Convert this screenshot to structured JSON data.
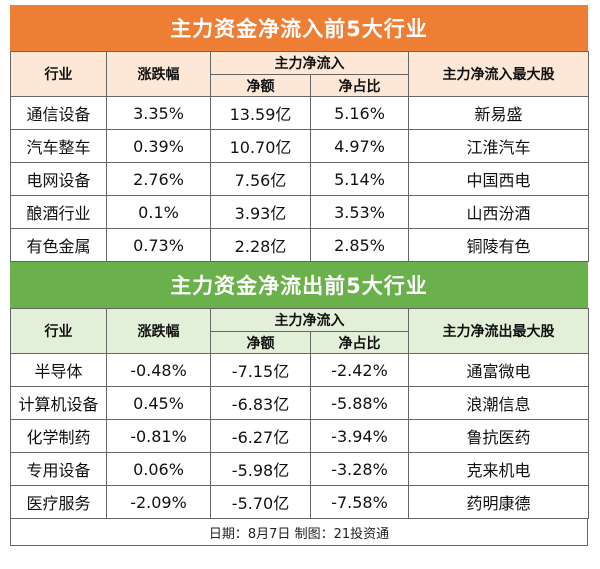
{
  "inflow": {
    "title": "主力资金净流入前5大行业",
    "headers": {
      "industry": "行业",
      "change": "涨跌幅",
      "net_flow": "主力净流入",
      "net_amount": "净额",
      "net_ratio": "净占比",
      "top_stock": "主力净流入最大股"
    },
    "rows": [
      {
        "industry": "通信设备",
        "change": "3.35%",
        "amount": "13.59亿",
        "ratio": "5.16%",
        "stock": "新易盛"
      },
      {
        "industry": "汽车整车",
        "change": "0.39%",
        "amount": "10.70亿",
        "ratio": "4.97%",
        "stock": "江淮汽车"
      },
      {
        "industry": "电网设备",
        "change": "2.76%",
        "amount": "7.56亿",
        "ratio": "5.14%",
        "stock": "中国西电"
      },
      {
        "industry": "酿酒行业",
        "change": "0.1%",
        "amount": "3.93亿",
        "ratio": "3.53%",
        "stock": "山西汾酒"
      },
      {
        "industry": "有色金属",
        "change": "0.73%",
        "amount": "2.28亿",
        "ratio": "2.85%",
        "stock": "铜陵有色"
      }
    ]
  },
  "outflow": {
    "title": "主力资金净流出前5大行业",
    "headers": {
      "industry": "行业",
      "change": "涨跌幅",
      "net_flow": "主力净流入",
      "net_amount": "净额",
      "net_ratio": "净占比",
      "top_stock": "主力净流出最大股"
    },
    "rows": [
      {
        "industry": "半导体",
        "change": "-0.48%",
        "amount": "-7.15亿",
        "ratio": "-2.42%",
        "stock": "通富微电"
      },
      {
        "industry": "计算机设备",
        "change": "0.45%",
        "amount": "-6.83亿",
        "ratio": "-5.88%",
        "stock": "浪潮信息"
      },
      {
        "industry": "化学制药",
        "change": "-0.81%",
        "amount": "-6.27亿",
        "ratio": "-3.94%",
        "stock": "鲁抗医药"
      },
      {
        "industry": "专用设备",
        "change": "0.06%",
        "amount": "-5.98亿",
        "ratio": "-3.28%",
        "stock": "克来机电"
      },
      {
        "industry": "医疗服务",
        "change": "-2.09%",
        "amount": "-5.70亿",
        "ratio": "-7.58%",
        "stock": "药明康德"
      }
    ]
  },
  "footer": "日期：8月7日 制图：21投资通",
  "colors": {
    "orange_banner": "#ef7e35",
    "green_banner": "#6ab04b",
    "orange_header": "#fde7d6",
    "green_header": "#e3f0d9"
  }
}
